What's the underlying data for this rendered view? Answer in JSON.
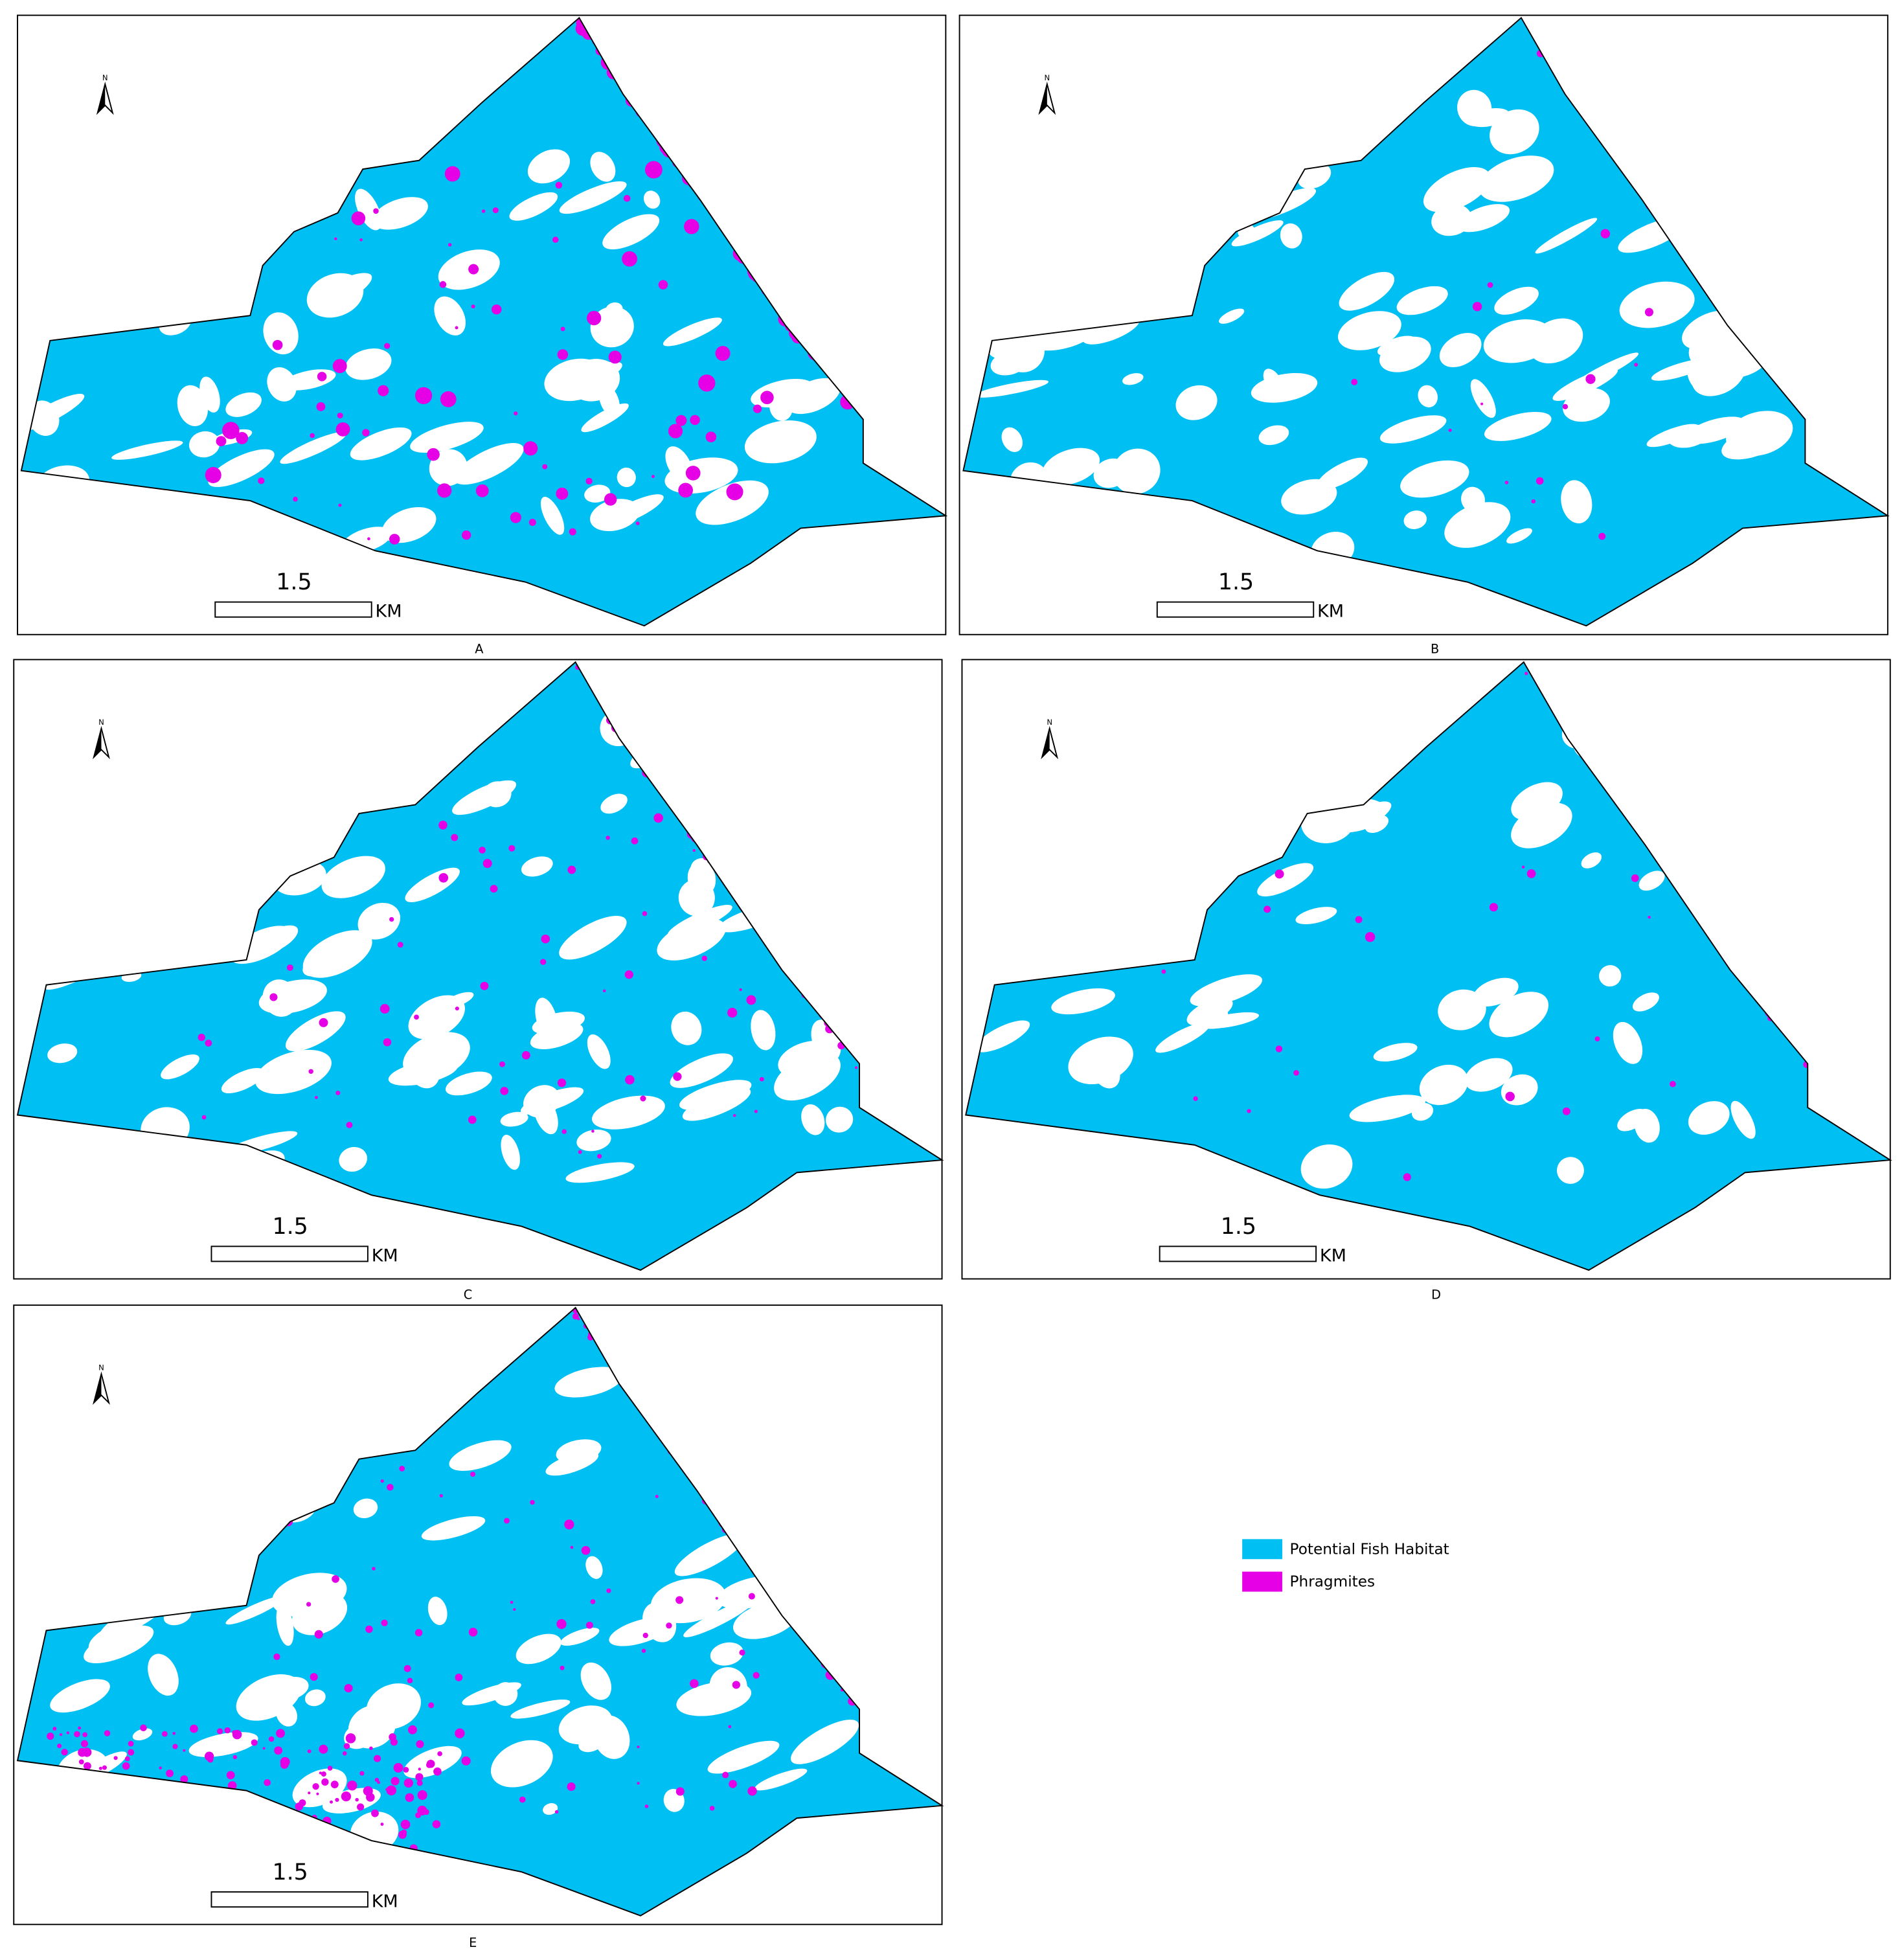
{
  "panels": [
    {
      "label": "A",
      "north": "N",
      "scale": "1.5",
      "unit": "KM"
    },
    {
      "label": "B",
      "north": "N",
      "scale": "1.5",
      "unit": "KM"
    },
    {
      "label": "C",
      "north": "N",
      "scale": "1.5",
      "unit": "KM"
    },
    {
      "label": "D",
      "north": "N",
      "scale": "1.5",
      "unit": "KM"
    },
    {
      "label": "E",
      "north": "N",
      "scale": "1.5",
      "unit": "KM"
    }
  ],
  "legend": [
    {
      "label": "Potential Fish Habitat",
      "color": "#00bff3"
    },
    {
      "label": "Phragmites",
      "color": "#e600e6"
    }
  ]
}
